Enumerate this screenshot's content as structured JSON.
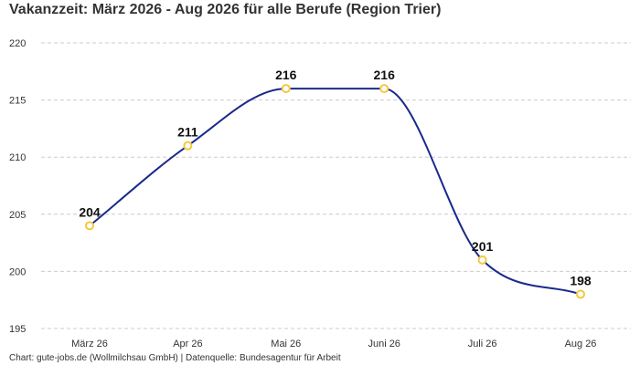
{
  "title": "Vakanzzeit: März 2026 - Aug 2026 für alle Berufe (Region Trier)",
  "footer": "Chart: gute-jobs.de (Wollmilchsau GmbH) | Datenquelle: Bundesagentur für Arbeit",
  "colors": {
    "line": "#1a2a8c",
    "marker_stroke": "#f5c842",
    "marker_fill": "#ffffff",
    "grid": "#cccccc"
  },
  "chart_data": {
    "type": "line",
    "title": "Vakanzzeit: März 2026 - Aug 2026 für alle Berufe (Region Trier)",
    "categories": [
      "März 26",
      "Apr 26",
      "Mai 26",
      "Juni 26",
      "Juli 26",
      "Aug 26"
    ],
    "series": [
      {
        "values": [
          204,
          211,
          216,
          216,
          201,
          198
        ],
        "labels": [
          "204",
          "211",
          "216",
          "216",
          "201",
          "198"
        ]
      }
    ],
    "ylim": [
      195,
      220
    ],
    "yticks": [
      195,
      200,
      205,
      210,
      215,
      220
    ],
    "ytick_labels": [
      "195",
      "200",
      "205",
      "210",
      "215",
      "220"
    ],
    "grid": true,
    "smooth": true
  }
}
